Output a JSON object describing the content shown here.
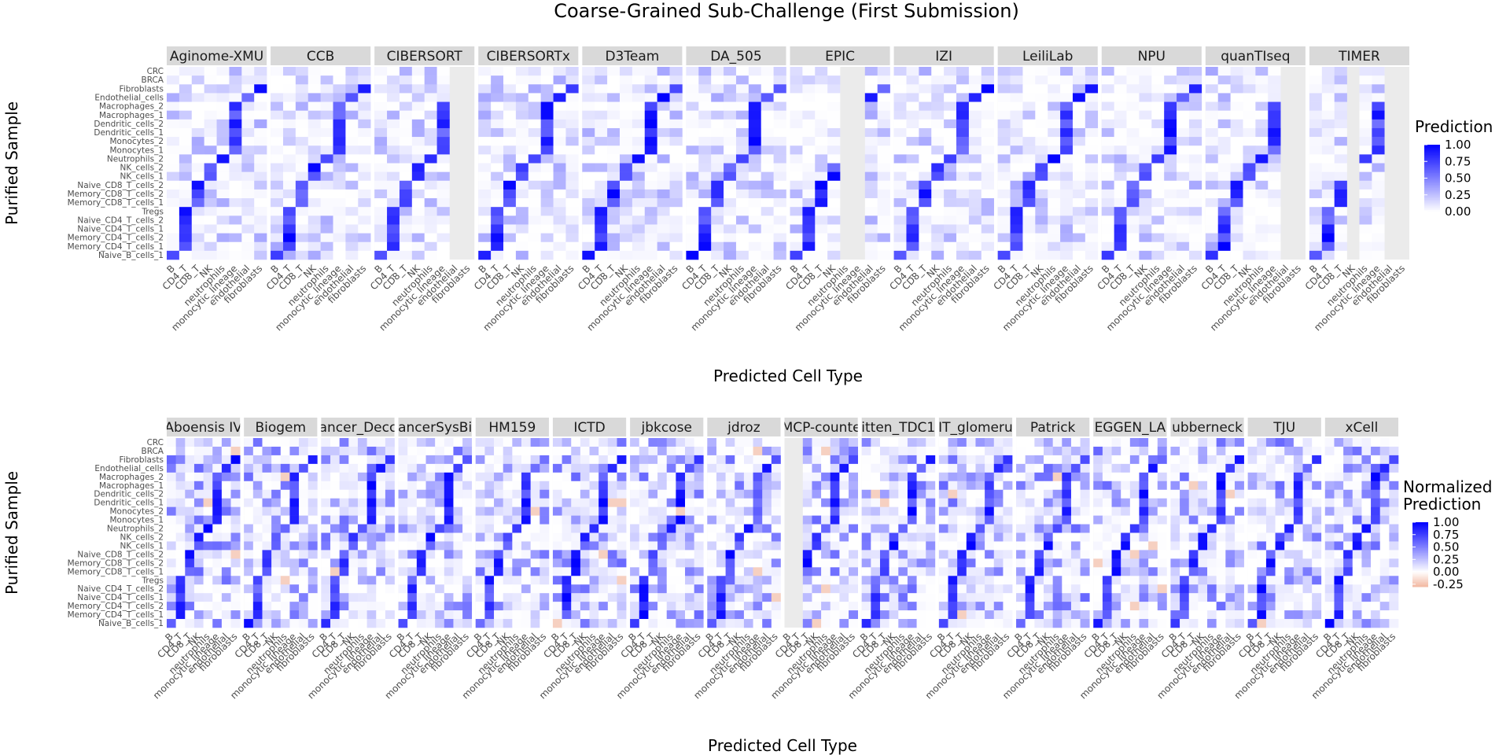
{
  "title": "Coarse-Grained Sub-Challenge (First Submission)",
  "colors": {
    "low": "#ffffff",
    "high": "#0000ff",
    "negative": "#f2b8a2",
    "panel": "#ebebeb",
    "strip": "#d9d9d9",
    "saturated": "#000000"
  },
  "chart_data": [
    {
      "type": "heatmap",
      "title": "Coarse-Grained Sub-Challenge (First Submission)",
      "xlabel": "Predicted Cell Type",
      "ylabel": "Purified Sample",
      "legend_title": "Prediction",
      "legend_position": "right",
      "legend_breaks": [
        "1.00",
        "0.75",
        "0.50",
        "0.25",
        "0.00"
      ],
      "value_range": [
        0,
        1
      ],
      "x_categories": [
        "B",
        "CD4_T",
        "CD8_T",
        "NK",
        "neutrophils",
        "monocytic_lineage",
        "endothelial",
        "fibroblasts"
      ],
      "y_categories": [
        "CRC",
        "BRCA",
        "Fibroblasts",
        "Endothelial_cells",
        "Macrophages_2",
        "Macrophages_1",
        "Dendritic_cells_2",
        "Dendritic_cells_1",
        "Monocytes_2",
        "Monocytes_1",
        "Neutrophils_2",
        "NK_cells_2",
        "NK_cells_1",
        "Naive_CD8_T_cells_2",
        "Memory_CD8_T_cells_2",
        "Memory_CD8_T_cells_1",
        "Tregs",
        "Naive_CD4_T_cells_2",
        "Naive_CD4_T_cells_1",
        "Memory_CD4_T_cells_2",
        "Memory_CD4_T_cells_1",
        "Naive_B_cells_1"
      ],
      "facets": [
        {
          "name": "Aginome-XMU",
          "missing": []
        },
        {
          "name": "CCB",
          "missing": []
        },
        {
          "name": "CIBERSORT",
          "missing": [
            "endothelial",
            "fibroblasts"
          ]
        },
        {
          "name": "CIBERSORTx",
          "missing": []
        },
        {
          "name": "D3Team",
          "missing": []
        },
        {
          "name": "DA_505",
          "missing": []
        },
        {
          "name": "EPIC",
          "missing": [
            "neutrophils",
            "monocytic_lineage"
          ]
        },
        {
          "name": "IZI",
          "missing": []
        },
        {
          "name": "LeiliLab",
          "missing": []
        },
        {
          "name": "NPU",
          "missing": []
        },
        {
          "name": "quanTIseq",
          "missing": [
            "endothelial",
            "fibroblasts"
          ]
        },
        {
          "name": "TIMER",
          "missing": [
            "NK",
            "endothelial",
            "fibroblasts"
          ]
        }
      ]
    },
    {
      "type": "heatmap",
      "xlabel": "Predicted Cell Type",
      "ylabel": "Purified Sample",
      "legend_title": "Normalized\nPrediction",
      "legend_position": "right",
      "legend_breaks": [
        "1.00",
        "0.75",
        "0.50",
        "0.25",
        "0.00",
        "-0.25"
      ],
      "value_range": [
        -0.3,
        1
      ],
      "x_categories": [
        "B",
        "CD4_T",
        "CD8_T",
        "NK",
        "neutrophils",
        "monocytic_lineage",
        "endothelial",
        "fibroblasts"
      ],
      "y_categories": [
        "CRC",
        "BRCA",
        "Fibroblasts",
        "Endothelial_cells",
        "Macrophages_2",
        "Macrophages_1",
        "Dendritic_cells_2",
        "Dendritic_cells_1",
        "Monocytes_2",
        "Monocytes_1",
        "Neutrophils_2",
        "NK_cells_2",
        "NK_cells_1",
        "Naive_CD8_T_cells_2",
        "Memory_CD8_T_cells_2",
        "Memory_CD8_T_cells_1",
        "Tregs",
        "Naive_CD4_T_cells_2",
        "Naive_CD4_T_cells_1",
        "Memory_CD4_T_cells_2",
        "Memory_CD4_T_cells_1",
        "Naive_B_cells_1"
      ],
      "facets": [
        {
          "name": "Aboensis IV",
          "missing": []
        },
        {
          "name": "Biogem",
          "missing": []
        },
        {
          "name": "ancer_Decc",
          "missing": []
        },
        {
          "name": "ancerSysBi",
          "missing": []
        },
        {
          "name": "HM159",
          "missing": []
        },
        {
          "name": "ICTD",
          "missing": []
        },
        {
          "name": "jbkcose",
          "missing": []
        },
        {
          "name": "jdroz",
          "missing": []
        },
        {
          "name": "MCP-counte",
          "missing": [
            "B",
            "CD4_T"
          ]
        },
        {
          "name": "itten_TDC1",
          "missing": []
        },
        {
          "name": "IT_glomeru",
          "missing": []
        },
        {
          "name": "Patrick",
          "missing": []
        },
        {
          "name": "EGGEN_LA",
          "missing": []
        },
        {
          "name": "ubberneck",
          "missing": []
        },
        {
          "name": "TJU",
          "missing": []
        },
        {
          "name": "xCell",
          "missing": []
        }
      ]
    }
  ]
}
